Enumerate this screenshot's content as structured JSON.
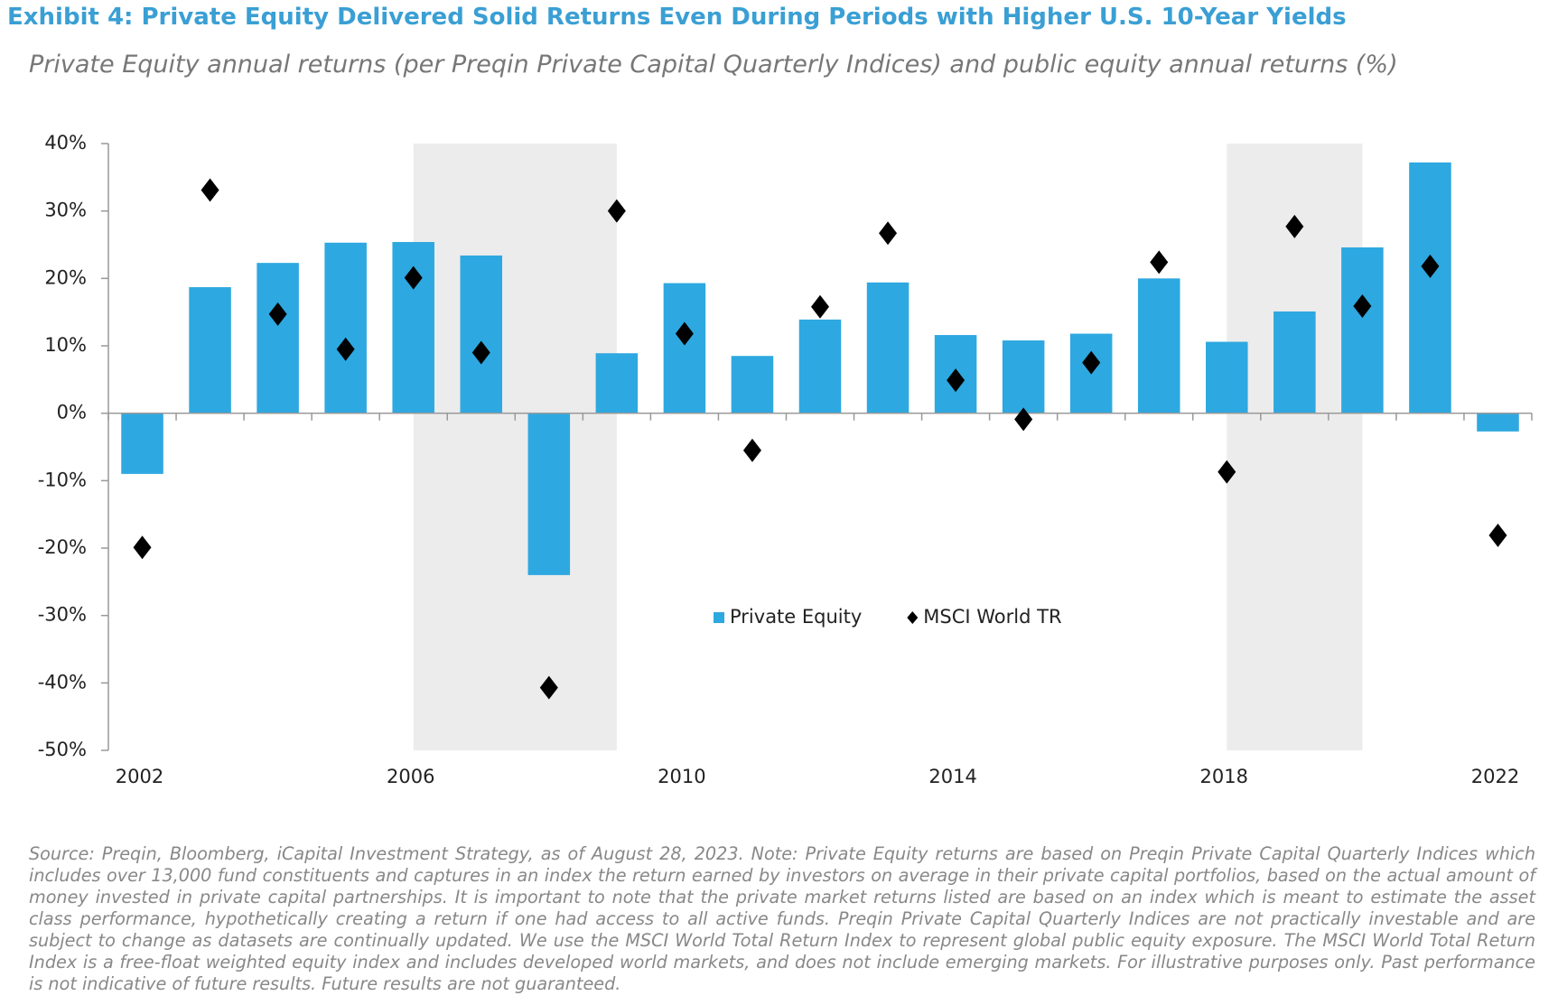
{
  "chart_data": {
    "type": "bar_scatter",
    "title": "Exhibit 4: Private Equity Delivered Solid Returns Even During Periods with Higher U.S. 10-Year Yields",
    "subtitle": "Private Equity annual returns (per Preqin Private Capital Quarterly Indices) and public equity annual returns (%)",
    "categories": [
      "2002",
      null,
      null,
      null,
      "2006",
      null,
      null,
      null,
      "2010",
      null,
      null,
      null,
      "2014",
      null,
      null,
      null,
      "2018",
      null,
      null,
      null,
      "2022"
    ],
    "series": [
      {
        "name": "Private Equity",
        "kind": "bar",
        "color": "#2ea8e0",
        "values": [
          -9,
          18.7,
          22.3,
          25.3,
          25.4,
          23.4,
          -24,
          8.9,
          19.3,
          8.5,
          13.9,
          19.4,
          11.6,
          10.8,
          11.8,
          20,
          10.6,
          15.1,
          24.6,
          37.2,
          -2.7
        ]
      },
      {
        "name": "MSCI World TR",
        "kind": "diamond",
        "color": "#000000",
        "values": [
          -19.9,
          33.1,
          14.7,
          9.5,
          20.1,
          9.0,
          -40.7,
          30.0,
          11.8,
          -5.5,
          15.8,
          26.7,
          4.9,
          -0.9,
          7.5,
          22.4,
          -8.7,
          27.7,
          15.9,
          21.8,
          -18.1
        ]
      }
    ],
    "shaded_spans": [
      [
        4,
        7
      ],
      [
        16,
        18
      ]
    ],
    "shade_color": "#ececec",
    "ylim": [
      -50,
      40
    ],
    "yticks": [
      {
        "value": 40,
        "label": "40%"
      },
      {
        "value": 30,
        "label": "30%"
      },
      {
        "value": 20,
        "label": "20%"
      },
      {
        "value": 10,
        "label": "10%"
      },
      {
        "value": 0,
        "label": "0%"
      },
      {
        "value": -10,
        "label": "-10%"
      },
      {
        "value": -20,
        "label": "-20%"
      },
      {
        "value": -30,
        "label": "-30%"
      },
      {
        "value": -40,
        "label": "-40%"
      },
      {
        "value": -50,
        "label": "-50%"
      }
    ],
    "legend": "center",
    "source": "Source: Preqin, Bloomberg, iCapital Investment Strategy, as of August 28, 2023. Note: Private Equity returns are based on Preqin Private Capital Quarterly Indices which includes over 13,000 fund constituents and captures in an index the return earned by investors on average in their private capital portfolios, based on the actual amount of money invested in private capital partnerships. It is important to note that the private market returns listed are based on an index which is meant to estimate the asset class performance, hypothetically creating a return if one had access to all active funds. Preqin Private Capital Quarterly Indices are not practically investable and are subject to change as datasets are continually updated. We use the MSCI World Total Return Index to represent global public equity exposure. The MSCI World Total Return Index is a free-float weighted equity index and includes developed world markets, and does not include emerging markets. For illustrative purposes only. Past performance is not indicative of future results. Future results are not guaranteed."
  }
}
